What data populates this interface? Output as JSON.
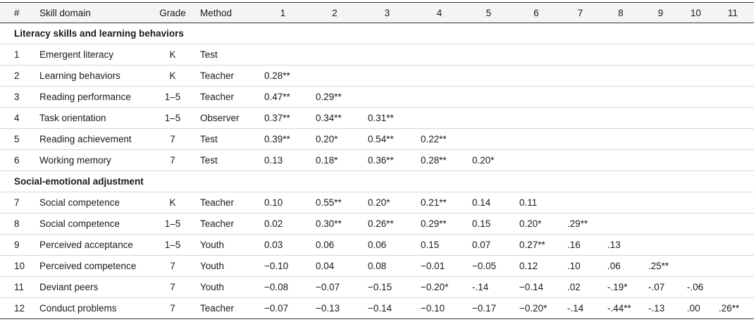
{
  "table": {
    "columns": [
      "#",
      "Skill domain",
      "Grade",
      "Method",
      "1",
      "2",
      "3",
      "4",
      "5",
      "6",
      "7",
      "8",
      "9",
      "10",
      "11"
    ],
    "sections": [
      {
        "title": "Literacy skills and learning behaviors",
        "rows": [
          {
            "num": "1",
            "domain": "Emergent literacy",
            "grade": "K",
            "method": "Test",
            "cells": []
          },
          {
            "num": "2",
            "domain": "Learning behaviors",
            "grade": "K",
            "method": "Teacher",
            "cells": [
              "0.28**"
            ]
          },
          {
            "num": "3",
            "domain": "Reading performance",
            "grade": "1–5",
            "method": "Teacher",
            "cells": [
              "0.47**",
              "0.29**"
            ]
          },
          {
            "num": "4",
            "domain": "Task orientation",
            "grade": "1–5",
            "method": "Observer",
            "cells": [
              "0.37**",
              "0.34**",
              "0.31**"
            ]
          },
          {
            "num": "5",
            "domain": "Reading achievement",
            "grade": "7",
            "method": "Test",
            "cells": [
              "0.39**",
              "0.20*",
              "0.54**",
              "0.22**"
            ]
          },
          {
            "num": "6",
            "domain": "Working memory",
            "grade": "7",
            "method": "Test",
            "cells": [
              "0.13",
              "0.18*",
              "0.36**",
              "0.28**",
              "0.20*"
            ]
          }
        ]
      },
      {
        "title": "Social-emotional adjustment",
        "rows": [
          {
            "num": "7",
            "domain": "Social competence",
            "grade": "K",
            "method": "Teacher",
            "cells": [
              "0.10",
              "0.55**",
              "0.20*",
              "0.21**",
              "0.14",
              "0.11"
            ]
          },
          {
            "num": "8",
            "domain": "Social competence",
            "grade": "1–5",
            "method": "Teacher",
            "cells": [
              "0.02",
              "0.30**",
              "0.26**",
              "0.29**",
              "0.15",
              "0.20*",
              ".29**"
            ]
          },
          {
            "num": "9",
            "domain": "Perceived acceptance",
            "grade": "1–5",
            "method": "Youth",
            "cells": [
              "0.03",
              "0.06",
              "0.06",
              "0.15",
              "0.07",
              "0.27**",
              ".16",
              ".13"
            ]
          },
          {
            "num": "10",
            "domain": "Perceived competence",
            "grade": "7",
            "method": "Youth",
            "cells": [
              "−0.10",
              "0.04",
              "0.08",
              "−0.01",
              "−0.05",
              "0.12",
              ".10",
              ".06",
              ".25**"
            ]
          },
          {
            "num": "11",
            "domain": "Deviant peers",
            "grade": "7",
            "method": "Youth",
            "cells": [
              "−0.08",
              "−0.07",
              "−0.15",
              "−0.20*",
              "-.14",
              "−0.14",
              ".02",
              "-.19*",
              "-.07",
              "-.06"
            ]
          },
          {
            "num": "12",
            "domain": "Conduct problems",
            "grade": "7",
            "method": "Teacher",
            "cells": [
              "−0.07",
              "−0.13",
              "−0.14",
              "−0.10",
              "−0.17",
              "−0.20*",
              "-.14",
              "-.44**",
              "-.13",
              ".00",
              ".26**"
            ]
          }
        ]
      }
    ]
  }
}
